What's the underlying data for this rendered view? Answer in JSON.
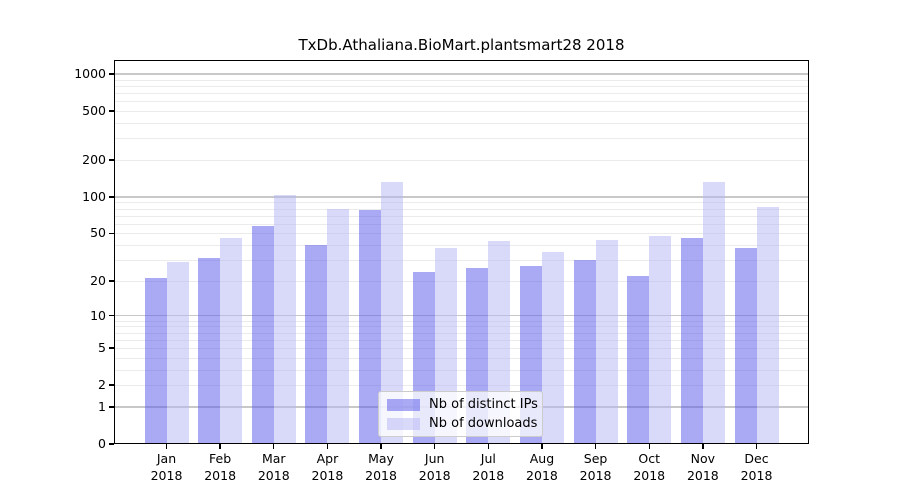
{
  "chart_data": {
    "type": "bar",
    "title": "TxDb.Athaliana.BioMart.plantsmart28 2018",
    "x": {
      "months": [
        "Jan",
        "Feb",
        "Mar",
        "Apr",
        "May",
        "Jun",
        "Jul",
        "Aug",
        "Sep",
        "Oct",
        "Nov",
        "Dec"
      ],
      "year": "2018"
    },
    "series": [
      {
        "name": "Nb of distinct IPs",
        "color": "rgba(83,83,233,0.5)",
        "values": [
          21,
          31,
          58,
          40,
          78,
          24,
          26,
          27,
          30,
          22,
          46,
          38
        ]
      },
      {
        "name": "Nb of downloads",
        "color": "rgba(179,179,243,0.5)",
        "values": [
          29,
          46,
          104,
          80,
          133,
          38,
          43,
          35,
          44,
          48,
          132,
          83
        ]
      }
    ],
    "y_axis": {
      "scale": "log1p",
      "ticks": [
        0,
        1,
        2,
        5,
        10,
        20,
        50,
        100,
        200,
        500,
        1000
      ],
      "major_gridlines": [
        1,
        10,
        100,
        1000
      ],
      "range_top": 1000
    },
    "legend": {
      "position": "inside-bottom-center"
    },
    "colors": {
      "major_grid": "#c8c8c8",
      "minor_grid": "#ebebeb",
      "axis": "#000000",
      "background": "#ffffff"
    }
  }
}
